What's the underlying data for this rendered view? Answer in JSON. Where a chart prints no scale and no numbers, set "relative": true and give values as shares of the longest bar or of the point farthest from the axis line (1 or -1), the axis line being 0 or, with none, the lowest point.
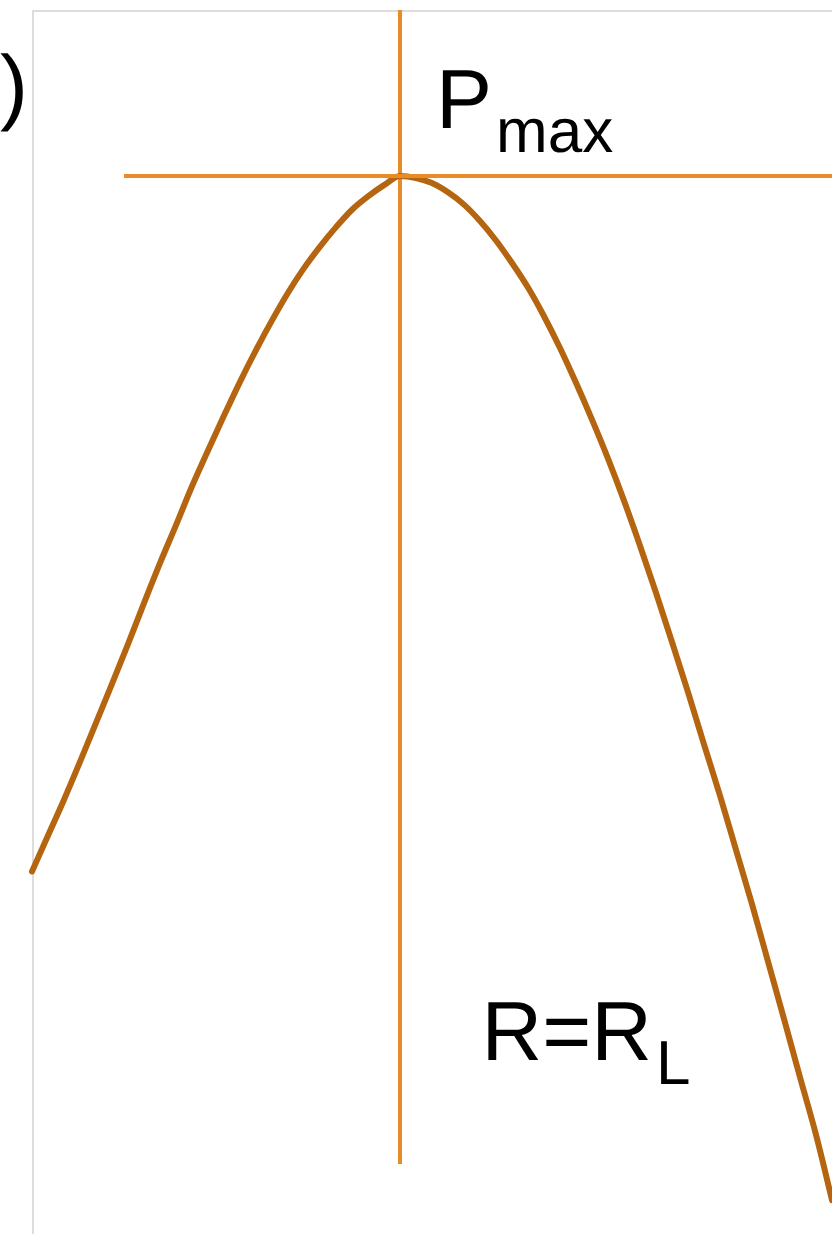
{
  "chart_data": {
    "type": "line",
    "relative": true,
    "categories": [
      null,
      null,
      null,
      null,
      null,
      null,
      null,
      null,
      null,
      null,
      null,
      null,
      null,
      null,
      null,
      null,
      null,
      null,
      null,
      null,
      null,
      null,
      null,
      null,
      null,
      null,
      null,
      null,
      null,
      null,
      null,
      null,
      null,
      null,
      null,
      null,
      null,
      null,
      null,
      null,
      null,
      null,
      null,
      null,
      null,
      null,
      null,
      null,
      null,
      null,
      null
    ],
    "series": [
      {
        "color": "#b5650f",
        "values": [
          0.321,
          0.356,
          0.391,
          0.428,
          0.466,
          0.504,
          0.543,
          0.583,
          0.622,
          0.659,
          0.697,
          0.732,
          0.766,
          0.799,
          0.83,
          0.859,
          0.886,
          0.91,
          0.931,
          0.95,
          0.967,
          0.98,
          0.991,
          1.0,
          0.998,
          0.993,
          0.984,
          0.972,
          0.956,
          0.937,
          0.915,
          0.891,
          0.863,
          0.832,
          0.798,
          0.762,
          0.724,
          0.683,
          0.639,
          0.593,
          0.545,
          0.496,
          0.445,
          0.395,
          0.342,
          0.289,
          0.233,
          0.177,
          0.12,
          0.064,
          0
        ]
      }
    ],
    "ref_lines": [
      {
        "axis": "y",
        "value": 1.0,
        "label": "P$_{max}$",
        "color": "#ea8c25"
      }
    ],
    "annotations": [
      ")",
      "R=R$_{L}$"
    ]
  }
}
